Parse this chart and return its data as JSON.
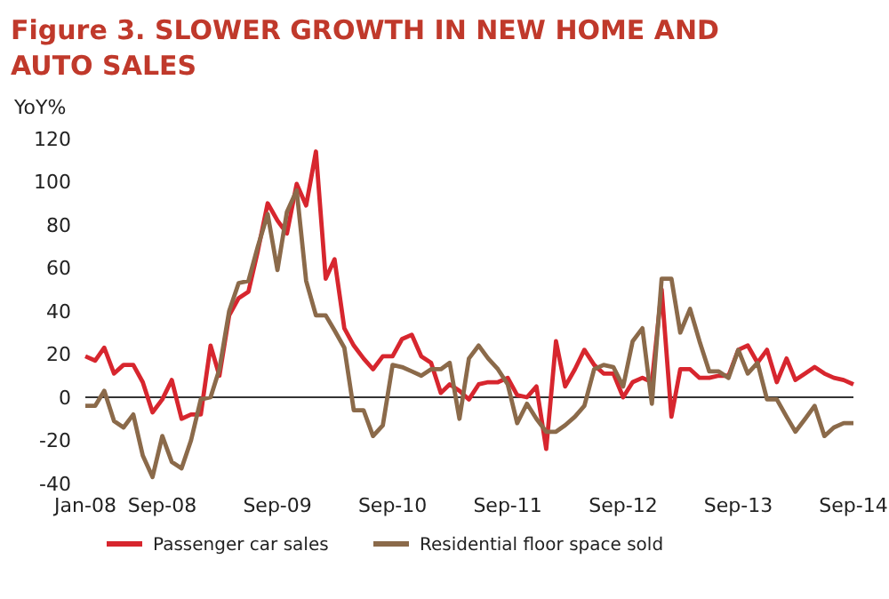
{
  "chart_data": {
    "type": "line",
    "title": "Figure 3. SLOWER GROWTH IN NEW HOME AND AUTO SALES",
    "ylabel": "YoY%",
    "x": [
      "2008-01",
      "2008-02",
      "2008-03",
      "2008-04",
      "2008-05",
      "2008-06",
      "2008-07",
      "2008-08",
      "2008-09",
      "2008-10",
      "2008-11",
      "2008-12",
      "2009-01",
      "2009-02",
      "2009-03",
      "2009-04",
      "2009-05",
      "2009-06",
      "2009-07",
      "2009-08",
      "2009-09",
      "2009-10",
      "2009-11",
      "2009-12",
      "2010-01",
      "2010-02",
      "2010-03",
      "2010-04",
      "2010-05",
      "2010-06",
      "2010-07",
      "2010-08",
      "2010-09",
      "2010-10",
      "2010-11",
      "2010-12",
      "2011-01",
      "2011-02",
      "2011-03",
      "2011-04",
      "2011-05",
      "2011-06",
      "2011-07",
      "2011-08",
      "2011-09",
      "2011-10",
      "2011-11",
      "2011-12",
      "2012-01",
      "2012-02",
      "2012-03",
      "2012-04",
      "2012-05",
      "2012-06",
      "2012-07",
      "2012-08",
      "2012-09",
      "2012-10",
      "2012-11",
      "2012-12",
      "2013-01",
      "2013-02",
      "2013-03",
      "2013-04",
      "2013-05",
      "2013-06",
      "2013-07",
      "2013-08",
      "2013-09",
      "2013-10",
      "2013-11",
      "2013-12",
      "2014-01",
      "2014-02",
      "2014-03",
      "2014-04",
      "2014-05",
      "2014-06",
      "2014-07",
      "2014-08",
      "2014-09"
    ],
    "series": [
      {
        "name": "Passenger car sales",
        "color": "#d7262e",
        "values": [
          19,
          17,
          23,
          11,
          15,
          15,
          7,
          -7,
          -1,
          8,
          -10,
          -8,
          -8,
          24,
          10,
          38,
          46,
          49,
          68,
          90,
          82,
          76,
          99,
          89,
          114,
          55,
          64,
          32,
          24,
          18,
          13,
          19,
          19,
          27,
          29,
          19,
          16,
          2,
          6,
          3,
          -1,
          6,
          7,
          7,
          9,
          1,
          0,
          5,
          -24,
          26,
          5,
          13,
          22,
          15,
          11,
          11,
          0,
          7,
          9,
          7,
          50,
          -9,
          13,
          13,
          9,
          9,
          10,
          10,
          22,
          24,
          16,
          22,
          7,
          18,
          8,
          11,
          14,
          11,
          9,
          8,
          6
        ]
      },
      {
        "name": "Residential floor space sold",
        "color": "#8b6a4a",
        "values": [
          -4,
          -4,
          3,
          -11,
          -14,
          -8,
          -27,
          -37,
          -18,
          -30,
          -33,
          -20,
          -1,
          0,
          13,
          40,
          53,
          54,
          70,
          85,
          59,
          86,
          96,
          54,
          38,
          38,
          31,
          23,
          -6,
          -6,
          -18,
          -13,
          15,
          14,
          12,
          10,
          13,
          13,
          16,
          -10,
          18,
          24,
          18,
          13,
          6,
          -12,
          -3,
          -10,
          -16,
          -16,
          -13,
          -9,
          -4,
          13,
          15,
          14,
          5,
          26,
          32,
          -3,
          55,
          55,
          30,
          41,
          26,
          12,
          12,
          9,
          22,
          11,
          16,
          -1,
          -1,
          -9,
          -16,
          -10,
          -4,
          -18,
          -14,
          -12,
          -12
        ]
      }
    ],
    "xlim": [
      "2008-01",
      "2014-09"
    ],
    "xticks": [
      {
        "value": "2008-01",
        "label": "Jan-08"
      },
      {
        "value": "2008-09",
        "label": "Sep-08"
      },
      {
        "value": "2009-09",
        "label": "Sep-09"
      },
      {
        "value": "2010-09",
        "label": "Sep-10"
      },
      {
        "value": "2011-09",
        "label": "Sep-11"
      },
      {
        "value": "2012-09",
        "label": "Sep-12"
      },
      {
        "value": "2013-09",
        "label": "Sep-13"
      },
      {
        "value": "2014-09",
        "label": "Sep-14"
      }
    ],
    "ylim": [
      -40,
      120
    ],
    "yticks": [
      -40,
      -20,
      0,
      20,
      40,
      60,
      80,
      100,
      120
    ],
    "ref_lines": [
      {
        "axis": "y",
        "value": 0,
        "color": "#333333"
      }
    ],
    "grid": false,
    "legend": "bottom",
    "marker": "none",
    "line_style": "solid"
  }
}
